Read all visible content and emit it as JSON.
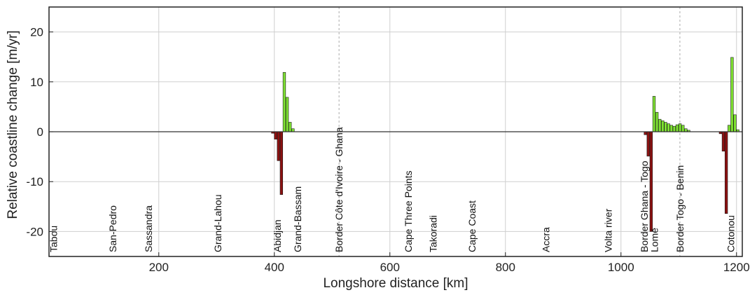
{
  "chart_data": {
    "type": "bar",
    "xlabel": "Longshore distance [km]",
    "ylabel": "Relative coastline change [m/yr]",
    "xlim": [
      10,
      1210
    ],
    "ylim": [
      -25,
      25
    ],
    "grid": true,
    "x_ticks": [
      200,
      400,
      600,
      800,
      1000,
      1200
    ],
    "y_ticks": [
      -20,
      -10,
      0,
      10,
      20
    ],
    "bin_width_km": 5,
    "colors": {
      "positive": "#7fe233",
      "negative": "#8c1111",
      "zero_line": "#333333"
    },
    "bars": [
      {
        "x": 397.5,
        "y": -0.3
      },
      {
        "x": 402.5,
        "y": -1.5
      },
      {
        "x": 407.5,
        "y": -5.8
      },
      {
        "x": 412.5,
        "y": -12.6
      },
      {
        "x": 417.5,
        "y": 11.9
      },
      {
        "x": 422.5,
        "y": 6.9
      },
      {
        "x": 427.5,
        "y": 1.9
      },
      {
        "x": 432.5,
        "y": 0.6
      },
      {
        "x": 1042.5,
        "y": -0.6
      },
      {
        "x": 1047.5,
        "y": -4.9
      },
      {
        "x": 1052.5,
        "y": -20.0
      },
      {
        "x": 1057.5,
        "y": 7.1
      },
      {
        "x": 1062.5,
        "y": 3.9
      },
      {
        "x": 1067.5,
        "y": 2.5
      },
      {
        "x": 1072.5,
        "y": 2.2
      },
      {
        "x": 1077.5,
        "y": 1.9
      },
      {
        "x": 1082.5,
        "y": 1.6
      },
      {
        "x": 1087.5,
        "y": 1.3
      },
      {
        "x": 1092.5,
        "y": 1.1
      },
      {
        "x": 1097.5,
        "y": 1.4
      },
      {
        "x": 1102.5,
        "y": 1.6
      },
      {
        "x": 1107.5,
        "y": 1.3
      },
      {
        "x": 1112.5,
        "y": 0.6
      },
      {
        "x": 1117.5,
        "y": 0.3
      },
      {
        "x": 1172.5,
        "y": -0.4
      },
      {
        "x": 1177.5,
        "y": -3.9
      },
      {
        "x": 1182.5,
        "y": -16.4
      },
      {
        "x": 1187.5,
        "y": 1.3
      },
      {
        "x": 1192.5,
        "y": 14.9
      },
      {
        "x": 1197.5,
        "y": 3.4
      },
      {
        "x": 1202.5,
        "y": 0.4
      }
    ],
    "locations": [
      {
        "name": "Tabou",
        "x": 18
      },
      {
        "name": "San-Pedro",
        "x": 120
      },
      {
        "name": "Sassandra",
        "x": 182
      },
      {
        "name": "Grand-Lahou",
        "x": 302
      },
      {
        "name": "Abidjan",
        "x": 405
      },
      {
        "name": "Grand-Bassam",
        "x": 440
      },
      {
        "name": "Border Côte d'Ivoire - Ghana",
        "x": 512
      },
      {
        "name": "Cape Three Points",
        "x": 632
      },
      {
        "name": "Takoradi",
        "x": 675
      },
      {
        "name": "Cape Coast",
        "x": 742
      },
      {
        "name": "Accra",
        "x": 870
      },
      {
        "name": "Volta river",
        "x": 978
      },
      {
        "name": "Border Ghana - Togo",
        "x": 1040
      },
      {
        "name": "Lomé",
        "x": 1058
      },
      {
        "name": "Border Togo - Benin",
        "x": 1102
      },
      {
        "name": "Cotonou",
        "x": 1190
      }
    ],
    "dashed_borders_x": [
      512,
      1102
    ]
  }
}
